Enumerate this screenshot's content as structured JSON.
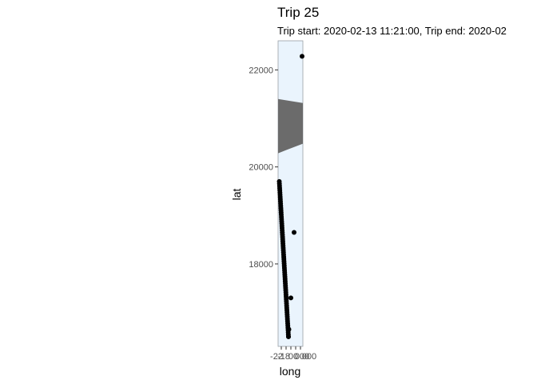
{
  "chart_data": {
    "type": "scatter",
    "title": "Trip 25",
    "subtitle": "Trip start: 2020-02-13 11:21:00, Trip end: 2020-02",
    "xlabel": "long",
    "ylabel": "lat",
    "ylim": [
      16300,
      22600
    ],
    "yticks": [
      18000,
      20000,
      22000
    ],
    "ytick_labels": [
      "18000",
      "20000",
      "22000"
    ],
    "xtick_labels": [
      "-22",
      "-18",
      "00",
      "000",
      "000"
    ],
    "panel_color": "#eaf4fd",
    "landmass_color": "#6b6b6b",
    "landmass_range": [
      20280,
      21400
    ],
    "point_color": "#000000",
    "grid": false,
    "points": [
      {
        "y": 16500
      },
      {
        "y": 16650
      },
      {
        "y": 17300
      },
      {
        "y": 18650
      },
      {
        "y": 22280
      }
    ],
    "track": {
      "y_start": 19700,
      "y_end": 16500
    }
  }
}
